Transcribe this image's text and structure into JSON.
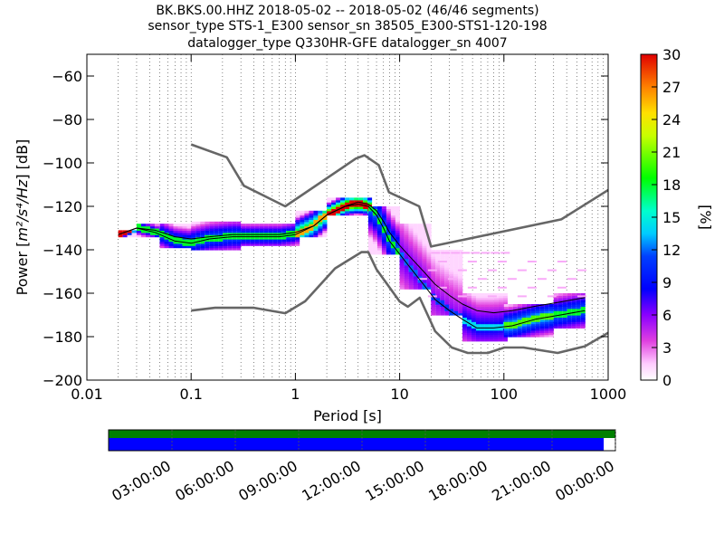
{
  "title": {
    "line1": "BK.BKS.00.HHZ   2018-05-02 -- 2018-05-02  (46/46 segments)",
    "line2": "sensor_type STS-1_E300 sensor_sn 38505_E300-STS1-120-198",
    "line3": "datalogger_type Q330HR-GFE datalogger_sn 4007"
  },
  "chart_data": {
    "type": "heatmap",
    "xlabel": "Period [s]",
    "ylabel_prefix": "Power [",
    "ylabel_unit": "m²/s⁴/Hz",
    "ylabel_suffix": "] [dB]",
    "xscale": "log",
    "xlim": [
      0.01,
      1000
    ],
    "ylim": [
      -200,
      -50
    ],
    "xticks": [
      0.01,
      0.1,
      1,
      10,
      100,
      1000
    ],
    "xtick_labels": [
      "0.01",
      "0.1",
      "1",
      "10",
      "100",
      "1000"
    ],
    "yticks": [
      -200,
      -180,
      -160,
      -140,
      -120,
      -100,
      -80,
      -60
    ],
    "ytick_labels": [
      "−200",
      "−180",
      "−160",
      "−140",
      "−120",
      "−100",
      "−80",
      "−60"
    ],
    "grid": "vertical dotted",
    "colorbar": {
      "label": "[%]",
      "range": [
        0,
        30
      ],
      "ticks": [
        0,
        3,
        6,
        9,
        12,
        15,
        18,
        21,
        24,
        27,
        30
      ],
      "tick_labels": [
        "0",
        "3",
        "6",
        "9",
        "12",
        "15",
        "18",
        "21",
        "24",
        "27",
        "30"
      ],
      "colormap": "pqlx"
    },
    "nhnm": {
      "name": "NHNM",
      "color": "#666666",
      "x": [
        0.1,
        0.22,
        0.32,
        0.8,
        3.8,
        4.6,
        6.3,
        7.9,
        15.4,
        20,
        354.8,
        1000
      ],
      "y": [
        -91.5,
        -97.4,
        -110.5,
        -120.0,
        -98.0,
        -96.5,
        -101.0,
        -113.5,
        -120.0,
        -138.5,
        -126.0,
        -112.5
      ]
    },
    "nlnm": {
      "name": "NLNM",
      "color": "#666666",
      "x": [
        0.1,
        0.17,
        0.4,
        0.8,
        1.24,
        2.4,
        4.3,
        5.0,
        6.0,
        10.0,
        12.0,
        15.6,
        21.9,
        31.6,
        45,
        70,
        101,
        154,
        328,
        600,
        1000
      ],
      "y": [
        -168.0,
        -166.7,
        -166.7,
        -169.2,
        -163.7,
        -148.6,
        -141.1,
        -141.1,
        -149.0,
        -163.8,
        -166.2,
        -162.1,
        -177.5,
        -185.0,
        -187.5,
        -187.5,
        -185.0,
        -185.0,
        -187.5,
        -184.4,
        -178.2
      ]
    },
    "mode_curve": {
      "name": "mode",
      "color": "#000000",
      "x": [
        0.02,
        0.03,
        0.045,
        0.07,
        0.1,
        0.15,
        0.25,
        0.4,
        0.7,
        1.0,
        1.5,
        2.0,
        3.0,
        4.0,
        5.0,
        6.0,
        7.0,
        8.0,
        10,
        13,
        17,
        22,
        30,
        40,
        55,
        80,
        120,
        200,
        350,
        600
      ],
      "y": [
        -133,
        -130,
        -132,
        -136,
        -137,
        -135,
        -134,
        -134,
        -134,
        -133,
        -129,
        -124,
        -120,
        -119,
        -120,
        -124,
        -130,
        -136,
        -142,
        -149,
        -156,
        -163,
        -168,
        -172,
        -176,
        -176,
        -175,
        -172,
        -170,
        -168
      ]
    },
    "mean_curve": {
      "name": "mean",
      "color": "#000000",
      "x": [
        0.02,
        0.03,
        0.045,
        0.07,
        0.1,
        0.15,
        0.25,
        0.4,
        0.7,
        1.0,
        1.5,
        2.0,
        3.0,
        4.0,
        5.0,
        6.0,
        7.0,
        8.0,
        10,
        13,
        17,
        22,
        30,
        40,
        55,
        80,
        120,
        200,
        350,
        600
      ],
      "y": [
        -133,
        -130,
        -131,
        -134,
        -135,
        -134,
        -133,
        -133,
        -133,
        -132,
        -129,
        -124,
        -120,
        -118,
        -119,
        -122,
        -127,
        -132,
        -138,
        -144,
        -150,
        -156,
        -161,
        -165,
        -168,
        -169,
        -168,
        -166,
        -164,
        -162
      ]
    },
    "density_bands": [
      {
        "x": [
          0.02,
          0.03
        ],
        "y": [
          -134,
          -131
        ],
        "pct": 30
      },
      {
        "x": [
          0.03,
          0.05
        ],
        "y": [
          -134,
          -128
        ],
        "pct": 12
      },
      {
        "x": [
          0.05,
          0.1
        ],
        "y": [
          -139,
          -128
        ],
        "pct": 12
      },
      {
        "x": [
          0.1,
          0.3
        ],
        "y": [
          -140,
          -127
        ],
        "pct": 12
      },
      {
        "x": [
          0.3,
          1.0
        ],
        "y": [
          -138,
          -128
        ],
        "pct": 12
      },
      {
        "x": [
          1.0,
          2.0
        ],
        "y": [
          -134,
          -122
        ],
        "pct": 20
      },
      {
        "x": [
          2.0,
          5.0
        ],
        "y": [
          -124,
          -116
        ],
        "pct": 27
      },
      {
        "x": [
          5.0,
          10
        ],
        "y": [
          -142,
          -120
        ],
        "pct": 12
      },
      {
        "x": [
          10,
          20
        ],
        "y": [
          -158,
          -128
        ],
        "pct": 6
      },
      {
        "x": [
          20,
          40
        ],
        "y": [
          -170,
          -140
        ],
        "pct": 5
      },
      {
        "x": [
          40,
          100
        ],
        "y": [
          -182,
          -160
        ],
        "pct": 8
      },
      {
        "x": [
          100,
          300
        ],
        "y": [
          -180,
          -165
        ],
        "pct": 14
      },
      {
        "x": [
          300,
          600
        ],
        "y": [
          -176,
          -160
        ],
        "pct": 12
      }
    ],
    "sparse_outliers": [
      {
        "x": [
          15,
          600
        ],
        "y": [
          -162,
          -145
        ],
        "pct": 2
      },
      {
        "x": [
          20,
          100
        ],
        "y": [
          -150,
          -138
        ],
        "pct": 2
      }
    ]
  },
  "timeline": {
    "labels": [
      "03:00:00",
      "06:00:00",
      "09:00:00",
      "12:00:00",
      "15:00:00",
      "18:00:00",
      "21:00:00",
      "00:00:00"
    ],
    "top_bar_color": "#008000",
    "bottom_bar_color": "#0000ff",
    "bottom_bar_fill_fraction": 0.977
  }
}
